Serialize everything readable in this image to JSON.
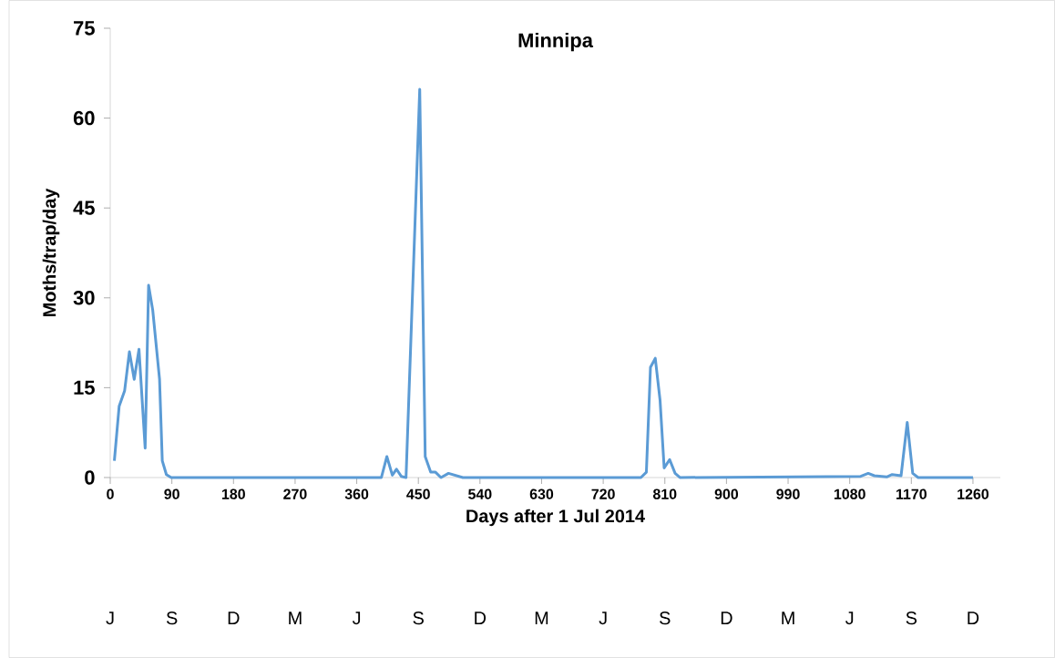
{
  "chart_data": {
    "type": "line",
    "title": "Minnipa",
    "xlabel": "Days after 1 Jul 2014",
    "ylabel": "Moths/trap/day",
    "xlim": [
      0,
      1300
    ],
    "ylim": [
      0,
      75
    ],
    "xticks": [
      0,
      90,
      180,
      270,
      360,
      450,
      540,
      630,
      720,
      810,
      900,
      990,
      1080,
      1170,
      1260
    ],
    "yticks": [
      0,
      15,
      30,
      45,
      60,
      75
    ],
    "x": [
      6,
      13,
      21,
      28,
      35,
      42,
      51,
      56,
      62,
      72,
      76,
      82,
      89,
      396,
      404,
      412,
      418,
      425,
      432,
      452,
      460,
      468,
      475,
      483,
      494,
      515,
      775,
      783,
      789,
      796,
      803,
      809,
      817,
      825,
      832,
      1096,
      1107,
      1116,
      1134,
      1142,
      1155,
      1164,
      1172,
      1180,
      1260
    ],
    "series": [
      {
        "color": "#5b9bd5",
        "line_style": "solid",
        "values": [
          2.8,
          11.9,
          14.5,
          21,
          16.4,
          21.4,
          4.9,
          32.1,
          28,
          16.4,
          2.8,
          0.5,
          0,
          0,
          3.5,
          0.4,
          1.4,
          0.2,
          0,
          64.8,
          3.5,
          0.9,
          0.9,
          0,
          0.7,
          0,
          0,
          0.9,
          18.4,
          19.9,
          12.9,
          1.6,
          3,
          0.7,
          0,
          0.2,
          0.7,
          0.3,
          0.1,
          0.5,
          0.3,
          9.2,
          0.7,
          0,
          0
        ]
      }
    ],
    "annotations": [
      "J",
      "S",
      "D",
      "M",
      "J",
      "S",
      "D",
      "M",
      "J",
      "S",
      "D",
      "M",
      "J",
      "S",
      "D"
    ]
  }
}
